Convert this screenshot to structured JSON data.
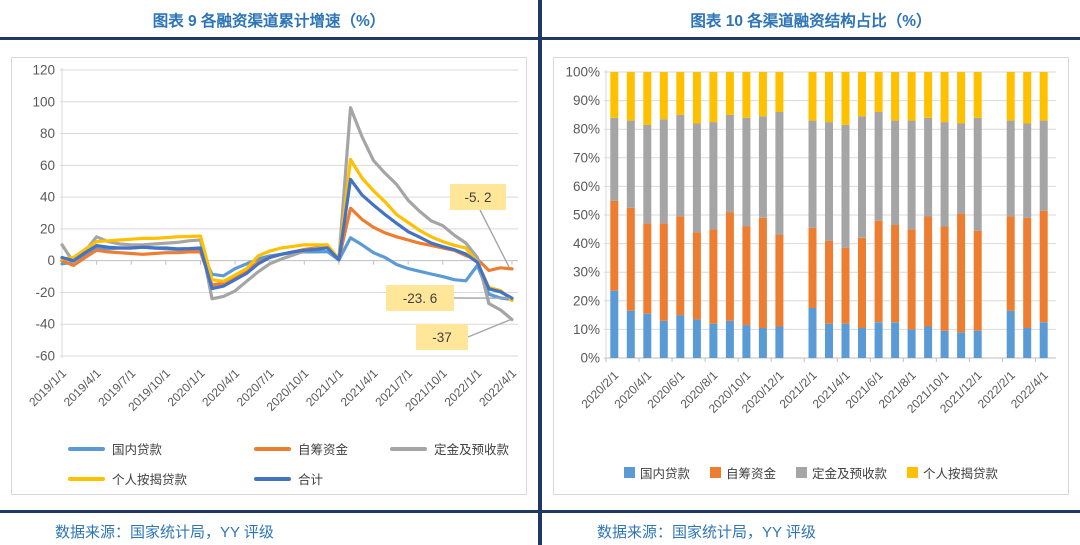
{
  "colors": {
    "accent_blue": "#2E75B6",
    "rule_navy": "#1F3864",
    "grid_gray": "#D9D9D9",
    "axis_gray": "#BFBFBF",
    "label_gray": "#595959",
    "annotation_fill": "#FFE699",
    "annotation_text": "#404040",
    "leader_gray": "#A6A6A6"
  },
  "left_panel": {
    "title": "图表 9  各融资渠道累计增速（%）",
    "source": "数据来源：国家统计局，YY 评级"
  },
  "right_panel": {
    "title": "图表 10 各渠道融资结构占比（%）",
    "source": "数据来源：国家统计局，YY 评级"
  },
  "chart_data": [
    {
      "type": "line",
      "title": "图表 9  各融资渠道累计增速（%）",
      "ylim": [
        -60,
        120
      ],
      "ytick_step": 20,
      "y_ticks": [
        "120",
        "100",
        "80",
        "60",
        "40",
        "20",
        "0",
        "-20",
        "-40",
        "-60"
      ],
      "x_monthly": [
        "2019/1/1",
        "2019/2/1",
        "2019/3/1",
        "2019/4/1",
        "2019/5/1",
        "2019/6/1",
        "2019/7/1",
        "2019/8/1",
        "2019/9/1",
        "2019/10/1",
        "2019/11/1",
        "2019/12/1",
        "2020/1/1",
        "2020/2/1",
        "2020/3/1",
        "2020/4/1",
        "2020/5/1",
        "2020/6/1",
        "2020/7/1",
        "2020/8/1",
        "2020/9/1",
        "2020/10/1",
        "2020/11/1",
        "2020/12/1",
        "2021/1/1",
        "2021/2/1",
        "2021/3/1",
        "2021/4/1",
        "2021/5/1",
        "2021/6/1",
        "2021/7/1",
        "2021/8/1",
        "2021/9/1",
        "2021/10/1",
        "2021/11/1",
        "2021/12/1",
        "2022/1/1",
        "2022/2/1",
        "2022/3/1",
        "2022/4/1"
      ],
      "x_tick_labels": [
        "2019/1/1",
        "2019/4/1",
        "2019/7/1",
        "2019/10/1",
        "2020/1/1",
        "2020/4/1",
        "2020/7/1",
        "2020/10/1",
        "2021/1/1",
        "2021/4/1",
        "2021/7/1",
        "2021/10/1",
        "2022/1/1",
        "2022/4/1"
      ],
      "x_tick_indices": [
        0,
        3,
        6,
        9,
        12,
        15,
        18,
        21,
        24,
        27,
        30,
        33,
        36,
        39
      ],
      "series": [
        {
          "name": "国内贷款",
          "color": "#5B9BD5",
          "values": [
            -2,
            -1,
            4,
            8,
            7.5,
            8,
            8,
            8.5,
            8,
            7.5,
            7,
            7,
            7,
            -8.6,
            -9.5,
            -5,
            -2,
            1,
            3,
            4,
            5,
            5.5,
            5.5,
            5.7,
            0.5,
            14.4,
            10,
            5,
            2,
            -2.4,
            -5,
            -6.7,
            -8.4,
            -10,
            -12,
            -12.7,
            -3,
            -21.1,
            -23.5,
            -24.4
          ]
        },
        {
          "name": "自筹资金",
          "color": "#ED7D31",
          "values": [
            0,
            -3,
            2,
            6.5,
            5.5,
            5,
            4.5,
            4,
            4.5,
            5,
            5,
            5.5,
            5.5,
            -15.4,
            -14,
            -10,
            -6,
            -1,
            2,
            4,
            5.5,
            7,
            8,
            9,
            1,
            33,
            26,
            21,
            17.5,
            15,
            13,
            11,
            9.6,
            8,
            6.5,
            3.2,
            1,
            -6.2,
            -4.5,
            -5.2
          ]
        },
        {
          "name": "定金及预收款",
          "color": "#A5A5A5",
          "values": [
            10,
            -1,
            6,
            15,
            12,
            10.5,
            10,
            10,
            10.5,
            11,
            11.5,
            12.5,
            13,
            -24,
            -22.5,
            -19,
            -13,
            -7,
            -2,
            1,
            3.5,
            6,
            7.5,
            8.5,
            1,
            96.3,
            78,
            63,
            55,
            48,
            38,
            31,
            25,
            22,
            16,
            11.1,
            2,
            -27,
            -31,
            -37
          ]
        },
        {
          "name": "个人按揭贷款",
          "color": "#FFC000",
          "values": [
            1,
            2,
            7,
            12,
            12.5,
            13,
            13.5,
            14,
            14,
            14.5,
            15,
            15.2,
            15.5,
            -12,
            -13,
            -9,
            -5,
            3,
            6,
            8,
            9,
            10,
            10,
            9.9,
            1,
            63.7,
            52,
            44,
            37,
            29,
            24,
            19,
            15,
            12,
            9.7,
            8,
            -1,
            -16.9,
            -18.8,
            -25.1
          ]
        },
        {
          "name": "合计",
          "color": "#4472C4",
          "values": [
            2,
            0,
            5,
            9.5,
            8.5,
            8,
            8,
            8.5,
            8,
            8,
            7.5,
            7.6,
            8,
            -17.5,
            -16,
            -12,
            -8,
            -2,
            2,
            4,
            5.5,
            6.5,
            7,
            8.1,
            0.5,
            51.2,
            41.4,
            35,
            29,
            23.5,
            18.2,
            14.8,
            11.1,
            8.8,
            6.9,
            4.2,
            -1,
            -17.7,
            -19.6,
            -23.6
          ]
        }
      ],
      "legend_order": [
        "国内贷款",
        "自筹资金",
        "定金及预收款",
        "个人按揭贷款",
        "合计"
      ],
      "legend_position": "bottom-left",
      "annotations": [
        {
          "text": "-5. 2",
          "series": "自筹资金",
          "value": -5.2
        },
        {
          "text": "-23. 6",
          "series": "合计",
          "value": -23.6
        },
        {
          "text": "-37",
          "series": "定金及预收款",
          "value": -37
        }
      ]
    },
    {
      "type": "stacked-bar-100",
      "title": "图表 10 各渠道融资结构占比（%）",
      "ylim": [
        0,
        100
      ],
      "ytick_step": 10,
      "y_ticks": [
        "100%",
        "90%",
        "80%",
        "70%",
        "60%",
        "50%",
        "40%",
        "30%",
        "20%",
        "10%",
        "0%"
      ],
      "months": [
        "2020/2/1",
        "2020/3/1",
        "2020/4/1",
        "2020/5/1",
        "2020/6/1",
        "2020/7/1",
        "2020/8/1",
        "2020/9/1",
        "2020/10/1",
        "2020/11/1",
        "2020/12/1",
        "2021/2/1",
        "2021/3/1",
        "2021/4/1",
        "2021/5/1",
        "2021/6/1",
        "2021/7/1",
        "2021/8/1",
        "2021/9/1",
        "2021/10/1",
        "2021/11/1",
        "2021/12/1",
        "2022/2/1",
        "2022/3/1",
        "2022/4/1"
      ],
      "slots": [
        0,
        1,
        2,
        3,
        4,
        5,
        6,
        7,
        8,
        9,
        10,
        12,
        13,
        14,
        15,
        16,
        17,
        18,
        19,
        20,
        21,
        22,
        24,
        25,
        26
      ],
      "total_slots": 27,
      "x_tick_labels": [
        "2020/2/1",
        "2020/4/1",
        "2020/6/1",
        "2020/8/1",
        "2020/10/1",
        "2020/12/1",
        "2021/2/1",
        "2021/4/1",
        "2021/6/1",
        "2021/8/1",
        "2021/10/1",
        "2021/12/1",
        "2022/2/1",
        "2022/4/1"
      ],
      "x_tick_slots": [
        0,
        2,
        4,
        6,
        8,
        10,
        12,
        14,
        16,
        18,
        20,
        22,
        24,
        26
      ],
      "series": [
        {
          "name": "国内贷款",
          "color": "#5B9BD5",
          "values": [
            23.5,
            16.5,
            15.5,
            13,
            15,
            13.5,
            12,
            13,
            11.5,
            10.5,
            11,
            17.5,
            12,
            12,
            10.5,
            12.5,
            12.5,
            10,
            11,
            9.5,
            9,
            9.5,
            16.5,
            10.5,
            12.5
          ]
        },
        {
          "name": "自筹资金",
          "color": "#ED7D31",
          "values": [
            31.5,
            36,
            31.5,
            34,
            34.5,
            30.5,
            33,
            38,
            34.5,
            38.5,
            32,
            28,
            29,
            26.5,
            31.5,
            35.5,
            34,
            35,
            38.5,
            36.5,
            41.5,
            35,
            33,
            38.5,
            39
          ]
        },
        {
          "name": "定金及预收款",
          "color": "#A5A5A5",
          "values": [
            29,
            30.5,
            34.5,
            36.5,
            35.5,
            38,
            37.5,
            34,
            38,
            35.5,
            43,
            37.5,
            41.5,
            43,
            42.5,
            38,
            36.5,
            38,
            34.5,
            36.5,
            31.5,
            39.5,
            33.5,
            33,
            31.5
          ]
        },
        {
          "name": "个人按揭贷款",
          "color": "#FFC000",
          "values": [
            16,
            17,
            18.5,
            16.5,
            15,
            18,
            17.5,
            15,
            16,
            15.5,
            14,
            17,
            17.5,
            18.5,
            15.5,
            14,
            17,
            17,
            16,
            17.5,
            18,
            16,
            17,
            18,
            17
          ]
        }
      ],
      "legend_order": [
        "国内贷款",
        "自筹资金",
        "定金及预收款",
        "个人按揭贷款"
      ],
      "legend_position": "bottom-center"
    }
  ]
}
